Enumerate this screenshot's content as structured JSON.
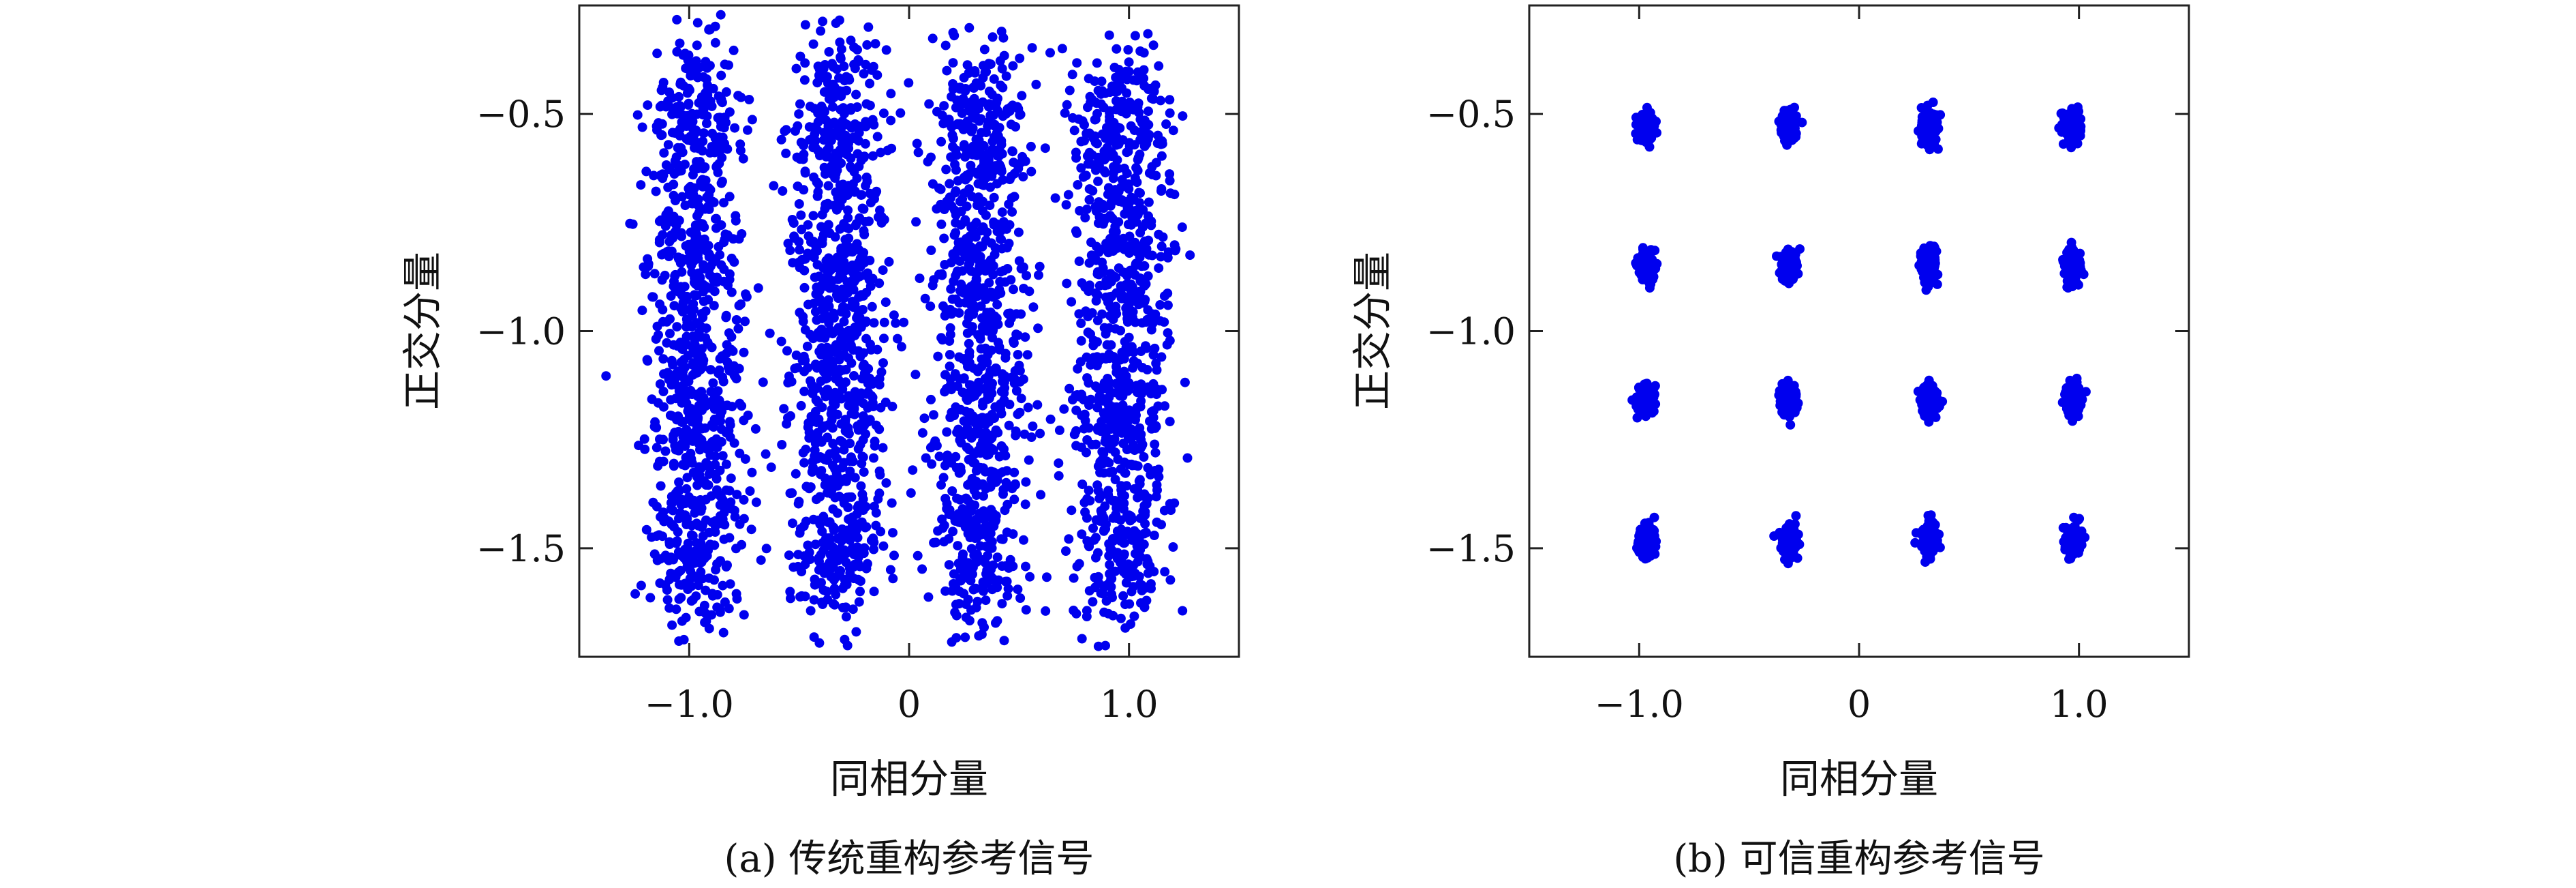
{
  "colors": {
    "points": "#0000ee",
    "axes": "#222222"
  },
  "chart_data": [
    {
      "type": "scatter",
      "caption": "(a) 传统重构参考信号",
      "xlabel": "同相分量",
      "ylabel": "正交分量",
      "xlim": [
        -1.5,
        1.5
      ],
      "ylim": [
        -1.75,
        -0.25
      ],
      "xticks": [
        -1.0,
        0,
        1.0
      ],
      "xtick_labels": [
        "−1.0",
        "0",
        "1.0"
      ],
      "yticks": [
        -0.5,
        -1.0,
        -1.5
      ],
      "ytick_labels": [
        "−0.5",
        "−1.0",
        "−1.5"
      ],
      "grid": false,
      "cluster_centers_x": [
        -0.97,
        -0.32,
        0.32,
        0.97
      ],
      "cluster_centers_y": [
        -0.53,
        -0.85,
        -1.16,
        -1.48
      ],
      "spread_std": 0.11,
      "points_per_cluster": 230
    },
    {
      "type": "scatter",
      "caption": "(b) 可信重构参考信号",
      "xlabel": "同相分量",
      "ylabel": "正交分量",
      "xlim": [
        -1.5,
        1.5
      ],
      "ylim": [
        -1.75,
        -0.25
      ],
      "xticks": [
        -1.0,
        0,
        1.0
      ],
      "xtick_labels": [
        "−1.0",
        "0",
        "1.0"
      ],
      "yticks": [
        -0.5,
        -1.0,
        -1.5
      ],
      "ytick_labels": [
        "−0.5",
        "−1.0",
        "−1.5"
      ],
      "grid": false,
      "cluster_centers_x": [
        -0.97,
        -0.32,
        0.32,
        0.97
      ],
      "cluster_centers_y": [
        -0.53,
        -0.85,
        -1.16,
        -1.48
      ],
      "spread_std": 0.018,
      "points_per_cluster": 150
    }
  ]
}
